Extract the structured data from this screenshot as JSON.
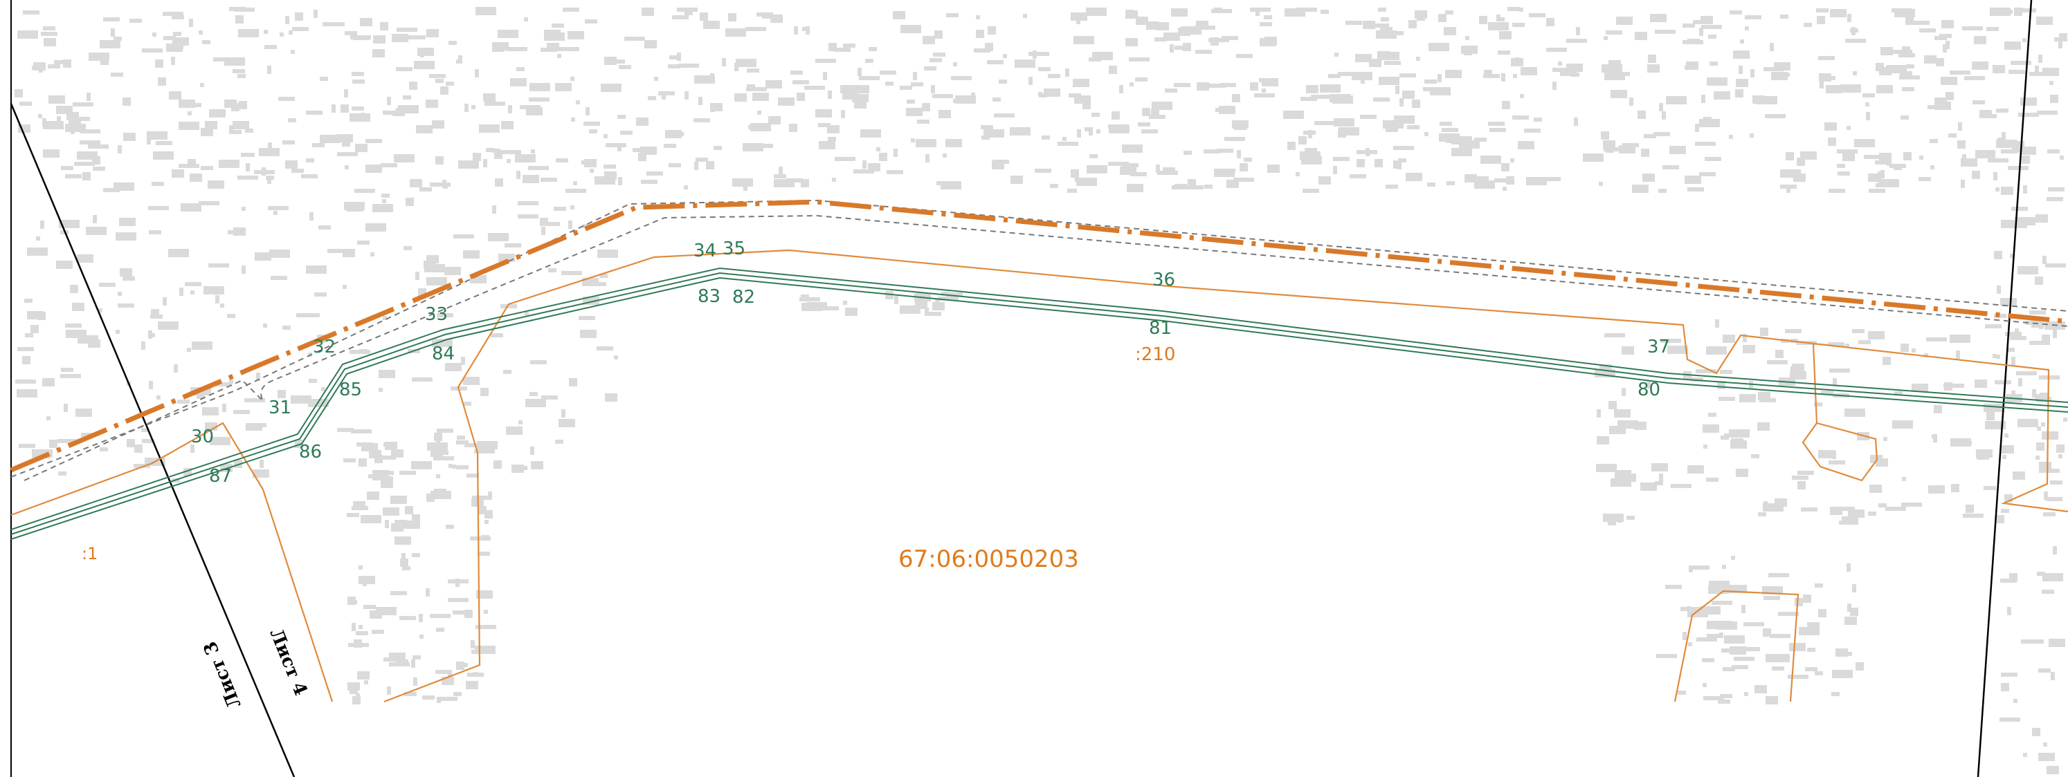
{
  "colors": {
    "background": "#ffffff",
    "basemap_gray": "#d9d9d9",
    "road_orange": "#d8792a",
    "parcel_orange": "#e08a3a",
    "green_lines": "#2f7a55",
    "gray_dashed": "#777777",
    "sheet_lines": "#000000"
  },
  "cadastral_block": {
    "number": "67:06:0050203"
  },
  "parcels": [
    {
      "label": ":1"
    },
    {
      "label": ":210"
    }
  ],
  "sheet_labels": [
    {
      "label": "Лист 3"
    },
    {
      "label": "Лист 4"
    }
  ],
  "points_upper": [
    "30",
    "31",
    "32",
    "33",
    "34",
    "35",
    "36",
    "37"
  ],
  "points_lower": [
    "87",
    "86",
    "85",
    "84",
    "83",
    "82",
    "81",
    "80"
  ]
}
